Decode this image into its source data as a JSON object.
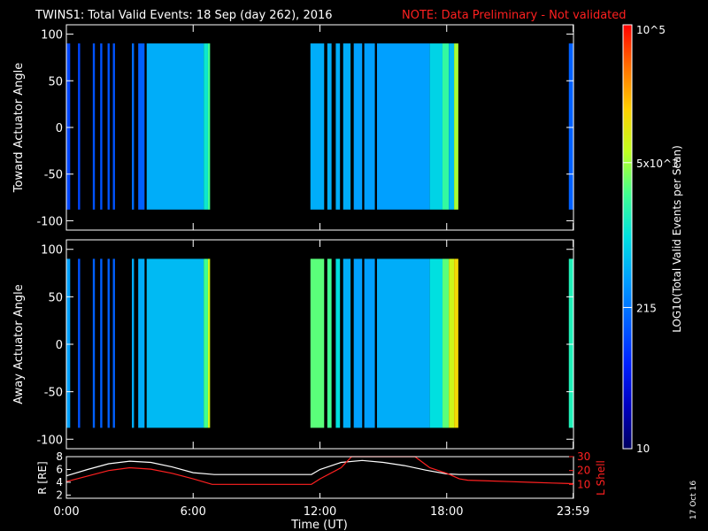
{
  "header": {
    "title": "TWINS1: Total Valid Events: 18 Sep (day 262), 2016",
    "note": "NOTE: Data Preliminary - Not validated"
  },
  "footer_date": "17 Oct 16",
  "colors": {
    "background": "#000000",
    "axes": "#ffffff",
    "note": "#ff2020",
    "rshell": "#ffffff",
    "lshell": "#ff2020"
  },
  "colorbar": {
    "label": "LOG10(Total Valid Events per Scan)",
    "scale": "log",
    "range": [
      10,
      100000
    ],
    "ticks": [
      {
        "value": 10,
        "label": "10"
      },
      {
        "value": 215,
        "label": "215"
      },
      {
        "value": 5000,
        "label": "5x10^3"
      },
      {
        "value": 100000,
        "label": "10^5"
      }
    ],
    "colormap": [
      "#000060",
      "#0000c0",
      "#0020ff",
      "#0060ff",
      "#00a0ff",
      "#00e0e0",
      "#40ff90",
      "#c0ff20",
      "#ffd000",
      "#ff7000",
      "#ff0000"
    ]
  },
  "xaxis": {
    "label": "Time (UT)",
    "range_hours": [
      0,
      24
    ],
    "ticks": [
      {
        "hour": 0,
        "label": "0:00"
      },
      {
        "hour": 6,
        "label": "6:00"
      },
      {
        "hour": 12,
        "label": "12:00"
      },
      {
        "hour": 18,
        "label": "18:00"
      },
      {
        "hour": 23.983,
        "label": "23:59"
      }
    ]
  },
  "chart_data": [
    {
      "type": "heatmap",
      "id": "toward",
      "ylabel": "Toward Actuator Angle",
      "ylim": [
        -110,
        110
      ],
      "yticks": [
        100,
        50,
        0,
        -50,
        -100
      ],
      "data_angle_range": [
        -88,
        90
      ],
      "segments": [
        {
          "start": 0.0,
          "end": 0.18,
          "level": 0.26
        },
        {
          "start": 0.18,
          "end": 0.55,
          "level": 0.0
        },
        {
          "start": 0.55,
          "end": 0.65,
          "level": 0.26
        },
        {
          "start": 0.65,
          "end": 1.25,
          "level": 0.0
        },
        {
          "start": 1.25,
          "end": 1.35,
          "level": 0.28
        },
        {
          "start": 1.35,
          "end": 1.6,
          "level": 0.0
        },
        {
          "start": 1.6,
          "end": 1.7,
          "level": 0.28
        },
        {
          "start": 1.7,
          "end": 1.95,
          "level": 0.0
        },
        {
          "start": 1.95,
          "end": 2.05,
          "level": 0.28
        },
        {
          "start": 2.05,
          "end": 2.2,
          "level": 0.0
        },
        {
          "start": 2.2,
          "end": 2.3,
          "level": 0.28
        },
        {
          "start": 2.3,
          "end": 3.1,
          "level": 0.0
        },
        {
          "start": 3.1,
          "end": 3.2,
          "level": 0.32
        },
        {
          "start": 3.2,
          "end": 3.4,
          "level": 0.0
        },
        {
          "start": 3.4,
          "end": 3.7,
          "level": 0.3
        },
        {
          "start": 3.7,
          "end": 3.8,
          "level": 0.0
        },
        {
          "start": 3.8,
          "end": 6.5,
          "level": 0.42
        },
        {
          "start": 6.5,
          "end": 6.7,
          "level": 0.52
        },
        {
          "start": 6.7,
          "end": 6.8,
          "level": 0.6
        },
        {
          "start": 11.55,
          "end": 12.2,
          "level": 0.42
        },
        {
          "start": 12.2,
          "end": 12.35,
          "level": 0.0
        },
        {
          "start": 12.35,
          "end": 12.55,
          "level": 0.42
        },
        {
          "start": 12.55,
          "end": 12.75,
          "level": 0.0
        },
        {
          "start": 12.75,
          "end": 12.95,
          "level": 0.42
        },
        {
          "start": 12.95,
          "end": 13.1,
          "level": 0.0
        },
        {
          "start": 13.1,
          "end": 13.45,
          "level": 0.42
        },
        {
          "start": 13.45,
          "end": 13.6,
          "level": 0.0
        },
        {
          "start": 13.6,
          "end": 14.0,
          "level": 0.4
        },
        {
          "start": 14.0,
          "end": 14.1,
          "level": 0.0
        },
        {
          "start": 14.1,
          "end": 14.6,
          "level": 0.4
        },
        {
          "start": 14.6,
          "end": 14.7,
          "level": 0.0
        },
        {
          "start": 14.7,
          "end": 17.2,
          "level": 0.4
        },
        {
          "start": 17.2,
          "end": 17.8,
          "level": 0.48
        },
        {
          "start": 17.8,
          "end": 18.1,
          "level": 0.58
        },
        {
          "start": 18.1,
          "end": 18.35,
          "level": 0.44
        },
        {
          "start": 18.35,
          "end": 18.55,
          "level": 0.68
        },
        {
          "start": 23.78,
          "end": 24.0,
          "level": 0.3
        }
      ]
    },
    {
      "type": "heatmap",
      "id": "away",
      "ylabel": "Away Actuator Angle",
      "ylim": [
        -110,
        110
      ],
      "yticks": [
        100,
        50,
        0,
        -50,
        -100
      ],
      "data_angle_range": [
        -88,
        90
      ],
      "segments": [
        {
          "start": 0.0,
          "end": 0.18,
          "level": 0.4
        },
        {
          "start": 0.18,
          "end": 0.55,
          "level": 0.0
        },
        {
          "start": 0.55,
          "end": 0.65,
          "level": 0.28
        },
        {
          "start": 0.65,
          "end": 1.25,
          "level": 0.0
        },
        {
          "start": 1.25,
          "end": 1.35,
          "level": 0.3
        },
        {
          "start": 1.35,
          "end": 1.6,
          "level": 0.0
        },
        {
          "start": 1.6,
          "end": 1.7,
          "level": 0.3
        },
        {
          "start": 1.7,
          "end": 1.95,
          "level": 0.0
        },
        {
          "start": 1.95,
          "end": 2.05,
          "level": 0.3
        },
        {
          "start": 2.05,
          "end": 2.2,
          "level": 0.0
        },
        {
          "start": 2.2,
          "end": 2.3,
          "level": 0.3
        },
        {
          "start": 2.3,
          "end": 3.1,
          "level": 0.0
        },
        {
          "start": 3.1,
          "end": 3.2,
          "level": 0.42
        },
        {
          "start": 3.2,
          "end": 3.4,
          "level": 0.0
        },
        {
          "start": 3.4,
          "end": 3.7,
          "level": 0.42
        },
        {
          "start": 3.7,
          "end": 3.8,
          "level": 0.0
        },
        {
          "start": 3.8,
          "end": 6.5,
          "level": 0.44
        },
        {
          "start": 6.5,
          "end": 6.7,
          "level": 0.6
        },
        {
          "start": 6.7,
          "end": 6.8,
          "level": 0.72
        },
        {
          "start": 11.55,
          "end": 12.2,
          "level": 0.62
        },
        {
          "start": 12.2,
          "end": 12.35,
          "level": 0.0
        },
        {
          "start": 12.35,
          "end": 12.55,
          "level": 0.6
        },
        {
          "start": 12.55,
          "end": 12.75,
          "level": 0.0
        },
        {
          "start": 12.75,
          "end": 12.95,
          "level": 0.5
        },
        {
          "start": 12.95,
          "end": 13.1,
          "level": 0.0
        },
        {
          "start": 13.1,
          "end": 13.45,
          "level": 0.42
        },
        {
          "start": 13.45,
          "end": 13.6,
          "level": 0.0
        },
        {
          "start": 13.6,
          "end": 14.0,
          "level": 0.4
        },
        {
          "start": 14.0,
          "end": 14.1,
          "level": 0.0
        },
        {
          "start": 14.1,
          "end": 14.6,
          "level": 0.4
        },
        {
          "start": 14.6,
          "end": 14.7,
          "level": 0.0
        },
        {
          "start": 14.7,
          "end": 17.2,
          "level": 0.42
        },
        {
          "start": 17.2,
          "end": 17.8,
          "level": 0.5
        },
        {
          "start": 17.8,
          "end": 18.1,
          "level": 0.62
        },
        {
          "start": 18.1,
          "end": 18.35,
          "level": 0.72
        },
        {
          "start": 18.35,
          "end": 18.55,
          "level": 0.78
        },
        {
          "start": 23.78,
          "end": 24.0,
          "level": 0.55
        }
      ]
    },
    {
      "type": "line",
      "id": "shells",
      "ylabel": "R [RE]",
      "ylabel2": "L Shell",
      "ylim": [
        1.5,
        8
      ],
      "y2lim": [
        0,
        30
      ],
      "yticks": [
        2,
        4,
        6,
        8
      ],
      "y2ticks": [
        10,
        20,
        30
      ],
      "series": [
        {
          "name": "R",
          "axis": "left",
          "x": [
            0,
            1,
            2,
            3,
            4,
            5,
            6,
            7,
            8,
            9,
            10,
            11,
            11.6,
            12,
            13,
            14,
            15,
            16,
            17,
            18,
            18.6,
            19,
            20,
            21,
            22,
            23,
            24
          ],
          "y": [
            5.0,
            6.0,
            6.9,
            7.3,
            7.1,
            6.4,
            5.5,
            5.2,
            5.2,
            5.2,
            5.2,
            5.2,
            5.2,
            6.0,
            7.1,
            7.4,
            7.1,
            6.6,
            5.9,
            5.3,
            5.2,
            5.2,
            5.2,
            5.2,
            5.2,
            5.2,
            5.2
          ]
        },
        {
          "name": "L",
          "axis": "right",
          "x": [
            0,
            1,
            2,
            3,
            4,
            5,
            6,
            6.9,
            8,
            9,
            10,
            11.6,
            12,
            13,
            13.5,
            16.5,
            17.2,
            18,
            18.6,
            19,
            20,
            21,
            22,
            23,
            24
          ],
          "y": [
            12,
            16,
            20,
            22,
            21,
            18,
            14,
            10,
            10,
            10,
            10,
            10,
            14,
            22,
            30,
            30,
            22,
            18,
            14,
            13,
            12.5,
            12,
            11.5,
            11,
            10.5
          ]
        }
      ]
    }
  ]
}
